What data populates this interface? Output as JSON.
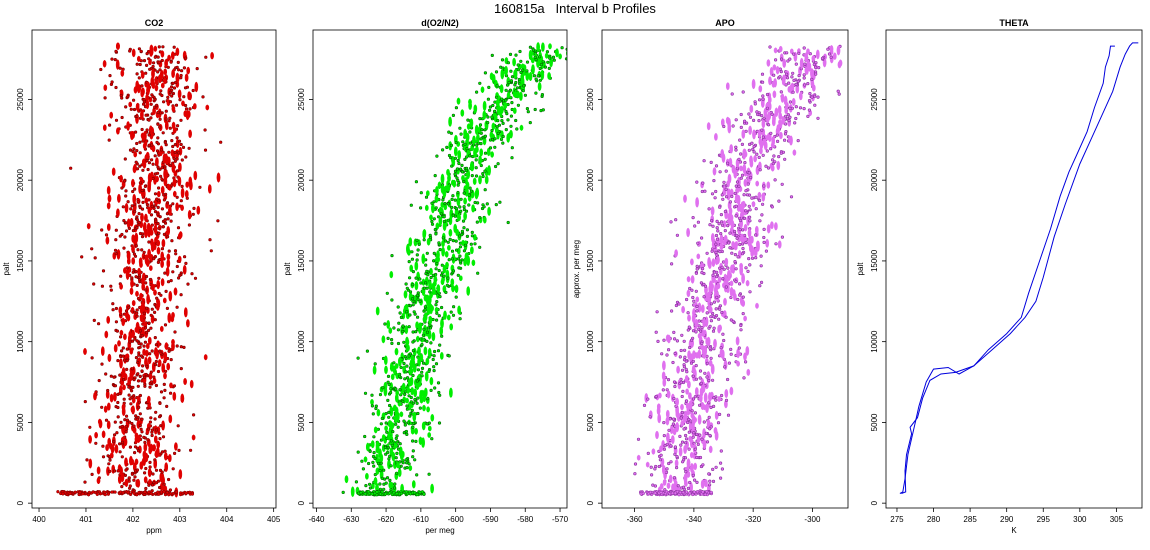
{
  "figure": {
    "title": "160815a   Interval b Profiles"
  },
  "chart_data": [
    {
      "type": "scatter",
      "title": "CO2",
      "xlabel": "ppm",
      "ylabel": "palt",
      "xlim": [
        399.85,
        405.05
      ],
      "ylim": [
        -300,
        29300
      ],
      "xticks": [
        400,
        401,
        402,
        403,
        404,
        405
      ],
      "yticks": [
        0,
        5000,
        10000,
        15000,
        20000,
        25000
      ],
      "ytick_labels": [
        "0",
        "5000",
        "10000",
        "15000",
        "20000",
        "25000"
      ],
      "point_color": "#e00000",
      "edge_color": "#7a0000",
      "center_profile": [
        [
          600,
          402.25
        ],
        [
          3000,
          402.15
        ],
        [
          6000,
          402.1
        ],
        [
          9000,
          402.15
        ],
        [
          12000,
          402.25
        ],
        [
          15000,
          402.3
        ],
        [
          18000,
          402.4
        ],
        [
          21000,
          402.5
        ],
        [
          24000,
          402.45
        ],
        [
          27000,
          402.5
        ],
        [
          28200,
          402.5
        ]
      ],
      "spread": 0.45,
      "n_points": 1300,
      "base_altitude": 620,
      "base_range": [
        400.4,
        403.3
      ]
    },
    {
      "type": "scatter",
      "title": "d(O2/N2)",
      "xlabel": "per meg",
      "ylabel": "palt",
      "xlim": [
        -641,
        -568
      ],
      "ylim": [
        -300,
        29300
      ],
      "xticks": [
        -640,
        -630,
        -620,
        -610,
        -600,
        -590,
        -580,
        -570
      ],
      "yticks": [
        0,
        5000,
        10000,
        15000,
        20000,
        25000
      ],
      "ytick_labels": [
        "0",
        "5000",
        "10000",
        "15000",
        "20000",
        "25000"
      ],
      "point_color": "#00ee00",
      "edge_color": "#006600",
      "center_profile": [
        [
          600,
          -622
        ],
        [
          2000,
          -619
        ],
        [
          5000,
          -616
        ],
        [
          8000,
          -613
        ],
        [
          11000,
          -610
        ],
        [
          13000,
          -608
        ],
        [
          15000,
          -604
        ],
        [
          17000,
          -601
        ],
        [
          19500,
          -602
        ],
        [
          20500,
          -598
        ],
        [
          22000,
          -594
        ],
        [
          24000,
          -590
        ],
        [
          26000,
          -583
        ],
        [
          28200,
          -575
        ]
      ],
      "spread": 5.0,
      "n_points": 1250,
      "base_altitude": 620,
      "base_range": [
        -628,
        -609
      ]
    },
    {
      "type": "scatter",
      "title": "APO",
      "xlabel": "",
      "ylabel": "approx. per meg",
      "xlim": [
        -371,
        -288
      ],
      "ylim": [
        -300,
        29300
      ],
      "xticks": [
        -360,
        -340,
        -320,
        -300
      ],
      "yticks": [
        0,
        5000,
        10000,
        15000,
        20000,
        25000
      ],
      "ytick_labels": [
        "0",
        "5000",
        "10000",
        "15000",
        "20000",
        "25000"
      ],
      "point_color": "#e070ef",
      "edge_color": "#8a30a0",
      "center_profile": [
        [
          600,
          -345
        ],
        [
          3000,
          -343
        ],
        [
          6000,
          -341
        ],
        [
          9000,
          -338
        ],
        [
          12000,
          -335
        ],
        [
          15000,
          -330
        ],
        [
          17000,
          -326
        ],
        [
          19500,
          -326
        ],
        [
          20500,
          -322
        ],
        [
          23000,
          -316
        ],
        [
          25000,
          -310
        ],
        [
          27000,
          -304
        ],
        [
          28200,
          -300
        ]
      ],
      "spread": 6.5,
      "n_points": 1250,
      "base_altitude": 620,
      "base_range": [
        -358,
        -334
      ]
    },
    {
      "type": "line",
      "title": "THETA",
      "xlabel": "K",
      "ylabel": "palt",
      "xlim": [
        273.5,
        308.5
      ],
      "ylim": [
        -300,
        29300
      ],
      "xticks": [
        275,
        280,
        285,
        290,
        295,
        300,
        305
      ],
      "yticks": [
        0,
        5000,
        10000,
        15000,
        20000,
        25000
      ],
      "ytick_labels": [
        "0",
        "5000",
        "10000",
        "15000",
        "20000",
        "25000"
      ],
      "line_color": "#0000dd",
      "series": [
        {
          "x": [
            275.6,
            276.2,
            276.1,
            276.3,
            277.0,
            276.8,
            277.8,
            278.5,
            279.5,
            281.0,
            283.0,
            285.5,
            287.5,
            290.0,
            292.0,
            293.0,
            294.5,
            296.0,
            297.3,
            298.5,
            299.5,
            301.0,
            302.0,
            303.2,
            303.5,
            304.0,
            304.2,
            304.8
          ],
          "y": [
            600,
            700,
            2000,
            3000,
            4300,
            4700,
            5300,
            6500,
            7600,
            8000,
            8100,
            8500,
            9500,
            10500,
            11500,
            13000,
            15000,
            17000,
            19000,
            20500,
            21500,
            23000,
            24500,
            26000,
            27000,
            27700,
            28300,
            28300
          ]
        },
        {
          "x": [
            275.4,
            275.8,
            276.1,
            276.5,
            277.5,
            278.0,
            279.0,
            280.0,
            282.0,
            283.5,
            285.5,
            288.0,
            290.5,
            292.5,
            294.0,
            295.0,
            296.5,
            298.0,
            300.0,
            301.5,
            303.0,
            304.5,
            305.5,
            306.2,
            306.8,
            307.2,
            308.0
          ],
          "y": [
            600,
            700,
            1500,
            3000,
            5000,
            6000,
            7500,
            8300,
            8400,
            8000,
            8500,
            9500,
            10500,
            11500,
            12500,
            14000,
            16500,
            18500,
            21000,
            22500,
            24000,
            25500,
            27000,
            27800,
            28300,
            28500,
            28500
          ]
        }
      ]
    }
  ]
}
